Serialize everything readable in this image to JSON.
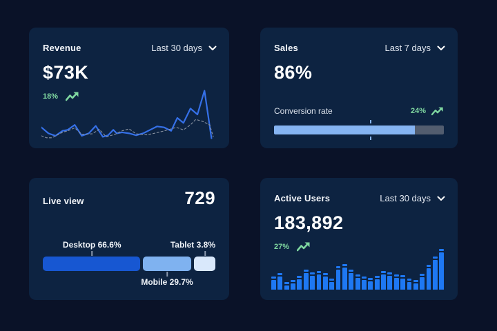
{
  "theme": {
    "page_bg": "#0a1228",
    "card_bg": "#0d2341",
    "green": "#7fd7a0",
    "line_blue": "#3570e8",
    "line_dashed": "#8b94a3",
    "bar_blue": "#1e78f3",
    "progress_fill": "#85b4f2",
    "progress_track": "#525d6f"
  },
  "cards": {
    "revenue": {
      "title": "Revenue",
      "range_label": "Last 30 days",
      "value": "$73K",
      "delta": "18%",
      "chart": {
        "type": "line",
        "note": "unlabeled sparkline, values normalized 0-100 (y measured from top)",
        "series": [
          {
            "name": "current",
            "style": "solid",
            "points": [
              [
                0,
                76
              ],
              [
                4,
                88
              ],
              [
                8,
                93
              ],
              [
                12,
                83
              ],
              [
                15,
                81
              ],
              [
                19,
                71
              ],
              [
                23,
                93
              ],
              [
                27,
                88
              ],
              [
                31,
                73
              ],
              [
                35,
                95
              ],
              [
                38,
                92
              ],
              [
                41,
                81
              ],
              [
                43,
                88
              ],
              [
                46,
                86
              ],
              [
                50,
                88
              ],
              [
                54,
                92
              ],
              [
                58,
                88
              ],
              [
                62,
                81
              ],
              [
                66,
                74
              ],
              [
                70,
                76
              ],
              [
                74,
                83
              ],
              [
                77.5,
                57
              ],
              [
                81,
                67
              ],
              [
                85,
                38
              ],
              [
                89,
                50
              ],
              [
                93,
                2
              ],
              [
                97,
                98
              ]
            ]
          },
          {
            "name": "previous",
            "style": "dashed",
            "points": [
              [
                0,
                93
              ],
              [
                3,
                97
              ],
              [
                6,
                97
              ],
              [
                12,
                86
              ],
              [
                15,
                83
              ],
              [
                19,
                77
              ],
              [
                23,
                90
              ],
              [
                29,
                89
              ],
              [
                33,
                80
              ],
              [
                37,
                95
              ],
              [
                42,
                90
              ],
              [
                46,
                83
              ],
              [
                50,
                79
              ],
              [
                54,
                89
              ],
              [
                60,
                91
              ],
              [
                63,
                89
              ],
              [
                69,
                84
              ],
              [
                73,
                80
              ],
              [
                77,
                76
              ],
              [
                81,
                81
              ],
              [
                85,
                71
              ],
              [
                88,
                60
              ],
              [
                92,
                64
              ],
              [
                96,
                71
              ],
              [
                98,
                95
              ]
            ]
          }
        ]
      }
    },
    "sales": {
      "title": "Sales",
      "range_label": "Last 7 days",
      "value": "86%",
      "metric_label": "Conversion rate",
      "delta": "24%",
      "progress": {
        "fill_percent": 83,
        "marker_percent": 57
      }
    },
    "live_view": {
      "title": "Live view",
      "value": "729",
      "chart": {
        "type": "stacked-bar",
        "segments": [
          {
            "name": "Desktop",
            "label": "Desktop 66.6%",
            "value_percent": 66.6,
            "display_percent": 57.5,
            "anchor_percent": 28.5,
            "label_side": "top",
            "label_align": "center",
            "color": "#1757d2"
          },
          {
            "name": "Mobile",
            "label": "Mobile 29.7%",
            "value_percent": 29.7,
            "display_percent": 28.5,
            "anchor_percent": 72,
            "label_side": "bottom",
            "label_align": "center",
            "color": "#7fb2f0"
          },
          {
            "name": "Tablet",
            "label": "Tablet 3.8%",
            "value_percent": 3.8,
            "display_percent": 12.5,
            "anchor_percent": 94,
            "label_side": "top",
            "label_align": "right",
            "color": "#d9e8fb"
          }
        ]
      }
    },
    "active_users": {
      "title": "Active Users",
      "range_label": "Last 30 days",
      "value": "183,892",
      "delta": "27%",
      "chart": {
        "type": "bar",
        "note": "unlabeled daily bars, heights in px of 62px chart area",
        "values": [
          19,
          24,
          11,
          14,
          20,
          29,
          25,
          27,
          24,
          16,
          34,
          37,
          29,
          22,
          19,
          17,
          20,
          27,
          25,
          22,
          21,
          16,
          14,
          23,
          36,
          48,
          59
        ],
        "max": 62
      }
    }
  }
}
